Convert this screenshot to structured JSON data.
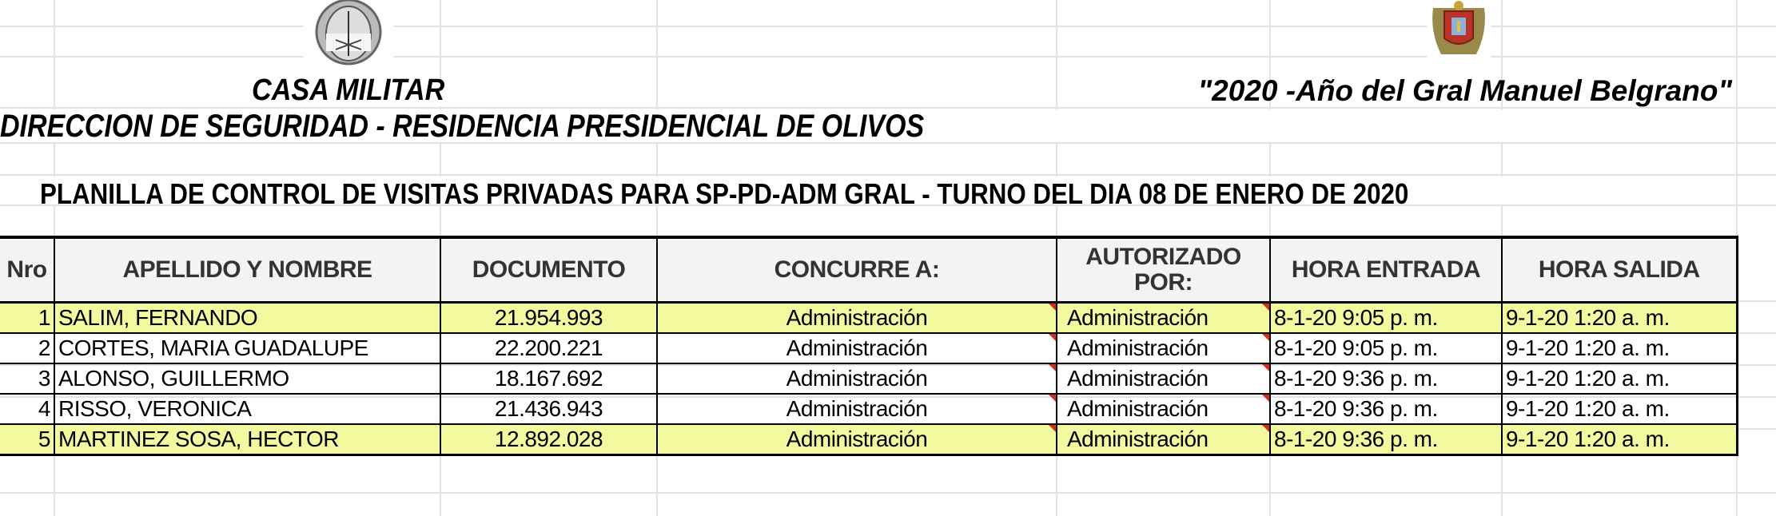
{
  "header": {
    "org": "CASA MILITAR",
    "department": "DIRECCION DE SEGURIDAD - RESIDENCIA PRESIDENCIAL DE OLIVOS",
    "motto": "\"2020 -Año del Gral Manuel Belgrano\"",
    "title": "PLANILLA DE CONTROL DE VISITAS PRIVADAS PARA SP-PD-ADM GRAL  -  TURNO DEL DIA 08 DE ENERO DE 2020"
  },
  "table": {
    "columns": [
      "Nro",
      "APELLIDO Y NOMBRE",
      "DOCUMENTO",
      "CONCURRE A:",
      "AUTORIZADO POR:",
      "HORA ENTRADA",
      "HORA  SALIDA"
    ],
    "rows": [
      {
        "nro": "1",
        "nombre": "SALIM, FERNANDO",
        "documento": "21.954.993",
        "concurre": "Administración",
        "autorizado": "Administración",
        "entrada": "8-1-20 9:05 p. m.",
        "salida": "9-1-20 1:20 a. m.",
        "highlighted": true
      },
      {
        "nro": "2",
        "nombre": "CORTES, MARIA GUADALUPE",
        "documento": "22.200.221",
        "concurre": "Administración",
        "autorizado": "Administración",
        "entrada": "8-1-20 9:05 p. m.",
        "salida": "9-1-20 1:20 a. m.",
        "highlighted": false
      },
      {
        "nro": "3",
        "nombre": "ALONSO, GUILLERMO",
        "documento": "18.167.692",
        "concurre": "Administración",
        "autorizado": "Administración",
        "entrada": "8-1-20 9:36 p. m.",
        "salida": "9-1-20 1:20 a. m.",
        "highlighted": false
      },
      {
        "nro": "4",
        "nombre": "RISSO, VERONICA",
        "documento": "21.436.943",
        "concurre": "Administración",
        "autorizado": "Administración",
        "entrada": "8-1-20 9:36 p. m.",
        "salida": "9-1-20 1:20 a. m.",
        "highlighted": false
      },
      {
        "nro": "5",
        "nombre": "MARTINEZ SOSA, HECTOR",
        "documento": "12.892.028",
        "concurre": "Administración",
        "autorizado": "Administración",
        "entrada": "8-1-20 9:36 p. m.",
        "salida": "9-1-20 1:20 a. m.",
        "highlighted": true
      }
    ]
  },
  "colors": {
    "highlight_row": "#f3f99e",
    "header_bg": "#f3f3f3",
    "comment_marker": "#d32f1e",
    "gridline": "#e2e2e2"
  },
  "icons": [
    "argentina-coat-of-arms-icon",
    "casa-militar-coat-of-arms-icon",
    "comment-indicator-icon"
  ]
}
